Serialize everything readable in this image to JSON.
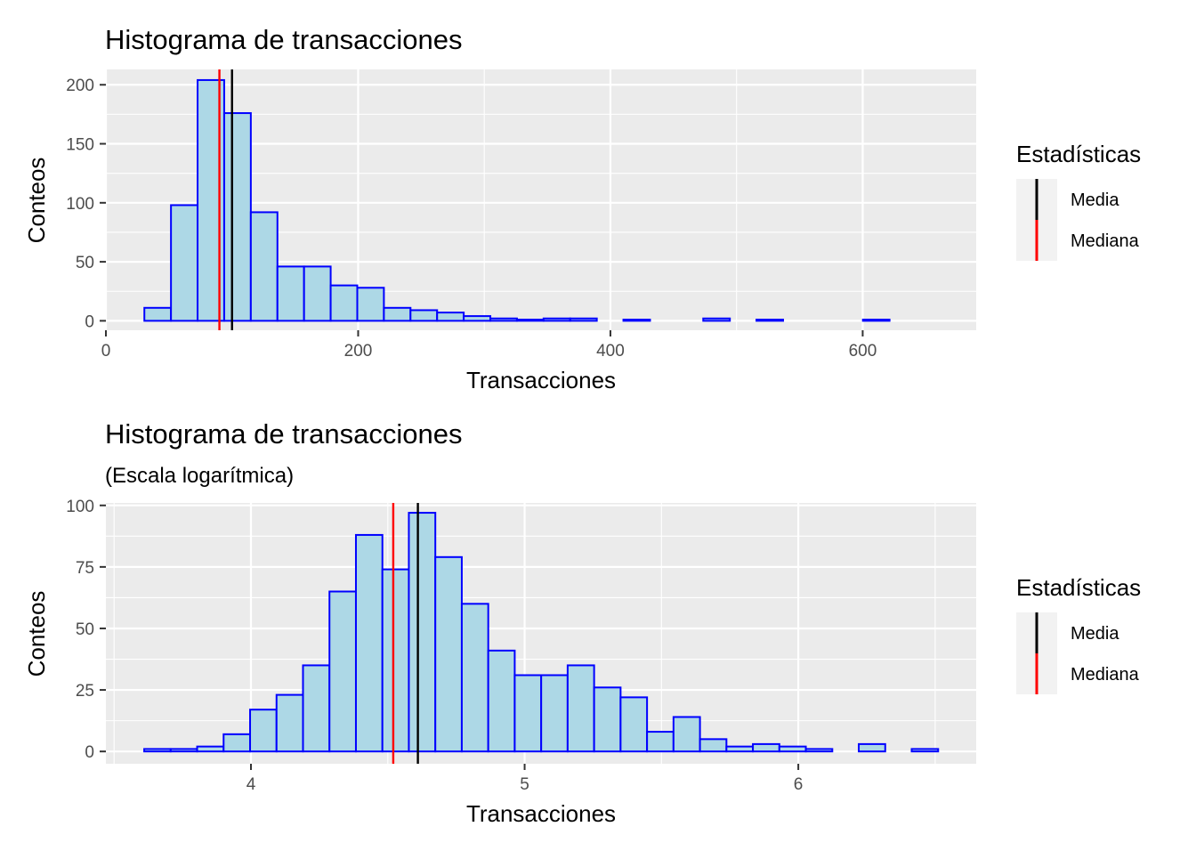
{
  "chart_data": [
    {
      "type": "bar",
      "title": "Histograma de transacciones",
      "subtitle": "",
      "xlabel": "Transacciones",
      "ylabel": "Conteos",
      "xlim": [
        0,
        690
      ],
      "ylim": [
        -8,
        213
      ],
      "x_ticks": [
        0,
        200,
        400,
        600
      ],
      "y_ticks": [
        0,
        50,
        100,
        150,
        200
      ],
      "grid": true,
      "bin_start": 30.5,
      "bin_width": 21.1,
      "counts": [
        11,
        98,
        204,
        176,
        92,
        46,
        46,
        30,
        28,
        11,
        9,
        7,
        4,
        2,
        1,
        2,
        2,
        0,
        1,
        0,
        0,
        2,
        0,
        1,
        0,
        0,
        0,
        1
      ],
      "stat_lines": [
        {
          "name": "Media",
          "x": 100,
          "color": "#000000"
        },
        {
          "name": "Mediana",
          "x": 90,
          "color": "#ff0000"
        }
      ],
      "legend": {
        "title": "Estadísticas",
        "placement": "right",
        "items": [
          "Media",
          "Mediana"
        ]
      },
      "fill_color": "#add8e6",
      "stroke_color": "#0000ff"
    },
    {
      "type": "bar",
      "title": "Histograma de transacciones",
      "subtitle": "(Escala logarítmica)",
      "xlabel": "Transacciones",
      "ylabel": "Conteos",
      "xlim": [
        3.47,
        6.65
      ],
      "ylim": [
        -5,
        101
      ],
      "x_ticks": [
        4,
        5,
        6
      ],
      "y_ticks": [
        0,
        25,
        50,
        75,
        100
      ],
      "grid": true,
      "bin_start": 3.61,
      "bin_width": 0.0967,
      "counts": [
        1,
        1,
        2,
        7,
        17,
        23,
        35,
        65,
        88,
        74,
        97,
        79,
        60,
        41,
        31,
        31,
        35,
        26,
        22,
        8,
        14,
        5,
        2,
        3,
        2,
        1,
        0,
        3,
        0,
        1
      ],
      "stat_lines": [
        {
          "name": "Media",
          "x": 4.61,
          "color": "#000000"
        },
        {
          "name": "Mediana",
          "x": 4.52,
          "color": "#ff0000"
        }
      ],
      "legend": {
        "title": "Estadísticas",
        "placement": "right",
        "items": [
          "Media",
          "Mediana"
        ]
      },
      "fill_color": "#add8e6",
      "stroke_color": "#0000ff"
    }
  ]
}
